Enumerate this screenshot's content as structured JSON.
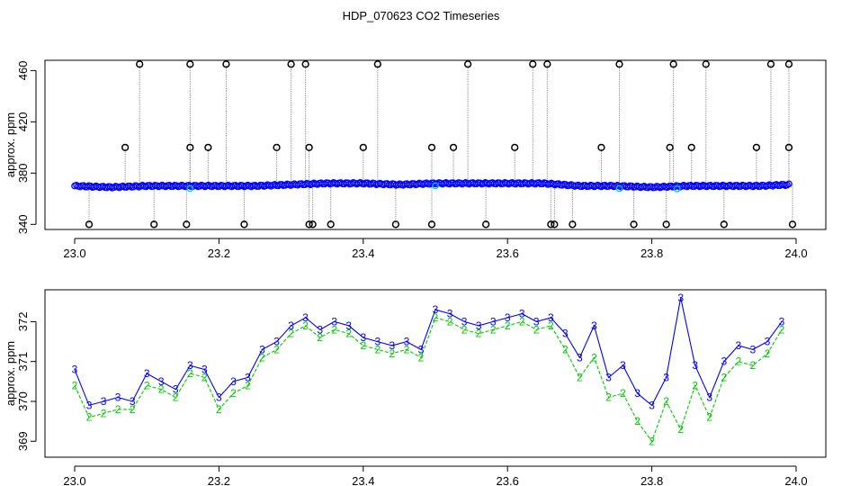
{
  "title": "HDP_070623  CO2 Timeseries",
  "colors": {
    "series1": "#0000ff",
    "series2": "#00cc00",
    "outlier": "#000000",
    "cyan": "#00cccc",
    "connector": "#9a9a9a"
  },
  "chart_data": [
    {
      "type": "scatter",
      "ylabel": "approx. ppm",
      "xlim": [
        23.0,
        24.0
      ],
      "ylim": [
        336,
        468
      ],
      "xticks": [
        "23.0",
        "23.2",
        "23.4",
        "23.6",
        "23.8",
        "24.0"
      ],
      "yticks": [
        "340",
        "380",
        "420",
        "460"
      ],
      "baseline_series": {
        "name": "",
        "x": [
          23.0,
          23.05,
          23.1,
          23.15,
          23.2,
          23.25,
          23.3,
          23.35,
          23.4,
          23.45,
          23.5,
          23.55,
          23.6,
          23.65,
          23.7,
          23.75,
          23.8,
          23.85,
          23.9,
          23.95,
          23.99
        ],
        "y": [
          370,
          369,
          370,
          370,
          370,
          370,
          371,
          372,
          372,
          371,
          372,
          372,
          372,
          372,
          370,
          370,
          369,
          370,
          370,
          370,
          371
        ]
      },
      "outliers": {
        "x": [
          23.02,
          23.07,
          23.09,
          23.11,
          23.155,
          23.16,
          23.16,
          23.185,
          23.21,
          23.235,
          23.28,
          23.3,
          23.32,
          23.325,
          23.325,
          23.33,
          23.355,
          23.4,
          23.42,
          23.445,
          23.495,
          23.495,
          23.525,
          23.545,
          23.57,
          23.61,
          23.635,
          23.655,
          23.66,
          23.665,
          23.69,
          23.73,
          23.755,
          23.775,
          23.82,
          23.825,
          23.83,
          23.855,
          23.875,
          23.9,
          23.945,
          23.965,
          23.99,
          23.99,
          23.995
        ],
        "y": [
          340,
          400,
          465,
          340,
          340,
          400,
          465,
          400,
          465,
          340,
          400,
          465,
          465,
          400,
          340,
          340,
          340,
          400,
          465,
          340,
          340,
          400,
          400,
          465,
          340,
          400,
          465,
          465,
          340,
          340,
          340,
          400,
          465,
          340,
          340,
          400,
          465,
          400,
          465,
          340,
          400,
          465,
          465,
          400,
          340
        ]
      }
    },
    {
      "type": "line",
      "ylabel": "approx. ppm",
      "xlim": [
        23.0,
        24.0
      ],
      "ylim": [
        368.6,
        372.8
      ],
      "xticks": [
        "23.0",
        "23.2",
        "23.4",
        "23.6",
        "23.8",
        "24.0"
      ],
      "yticks": [
        "369",
        "370",
        "371",
        "372"
      ],
      "x": [
        23.0,
        23.02,
        23.04,
        23.06,
        23.08,
        23.1,
        23.12,
        23.14,
        23.16,
        23.18,
        23.2,
        23.22,
        23.24,
        23.26,
        23.28,
        23.3,
        23.32,
        23.34,
        23.36,
        23.38,
        23.4,
        23.42,
        23.44,
        23.46,
        23.48,
        23.5,
        23.52,
        23.54,
        23.56,
        23.58,
        23.6,
        23.62,
        23.64,
        23.66,
        23.68,
        23.7,
        23.72,
        23.74,
        23.76,
        23.78,
        23.8,
        23.82,
        23.84,
        23.86,
        23.88,
        23.9,
        23.92,
        23.94,
        23.96,
        23.98
      ],
      "series": [
        {
          "name": "3",
          "marker": "3",
          "values": [
            370.8,
            369.9,
            370.0,
            370.1,
            370.0,
            370.7,
            370.5,
            370.3,
            370.9,
            370.8,
            370.1,
            370.5,
            370.6,
            371.3,
            371.5,
            371.9,
            372.1,
            371.8,
            372.0,
            371.9,
            371.6,
            371.5,
            371.4,
            371.5,
            371.3,
            372.3,
            372.2,
            372.0,
            371.9,
            372.0,
            372.1,
            372.2,
            372.0,
            372.1,
            371.7,
            371.1,
            371.9,
            370.6,
            370.9,
            370.2,
            369.9,
            370.6,
            372.6,
            370.9,
            370.1,
            371.0,
            371.4,
            371.3,
            371.5,
            372.0
          ]
        },
        {
          "name": "2",
          "marker": "2",
          "values": [
            370.4,
            369.6,
            369.7,
            369.8,
            369.8,
            370.4,
            370.3,
            370.1,
            370.7,
            370.6,
            369.8,
            370.2,
            370.4,
            371.1,
            371.3,
            371.7,
            371.9,
            371.6,
            371.8,
            371.7,
            371.4,
            371.3,
            371.2,
            371.3,
            371.1,
            372.1,
            372.0,
            371.8,
            371.7,
            371.8,
            371.9,
            372.0,
            371.8,
            371.9,
            371.3,
            370.6,
            371.1,
            370.1,
            370.2,
            369.5,
            369.0,
            370.0,
            369.3,
            370.4,
            369.6,
            370.6,
            371.0,
            370.9,
            371.2,
            371.8
          ]
        }
      ]
    }
  ]
}
